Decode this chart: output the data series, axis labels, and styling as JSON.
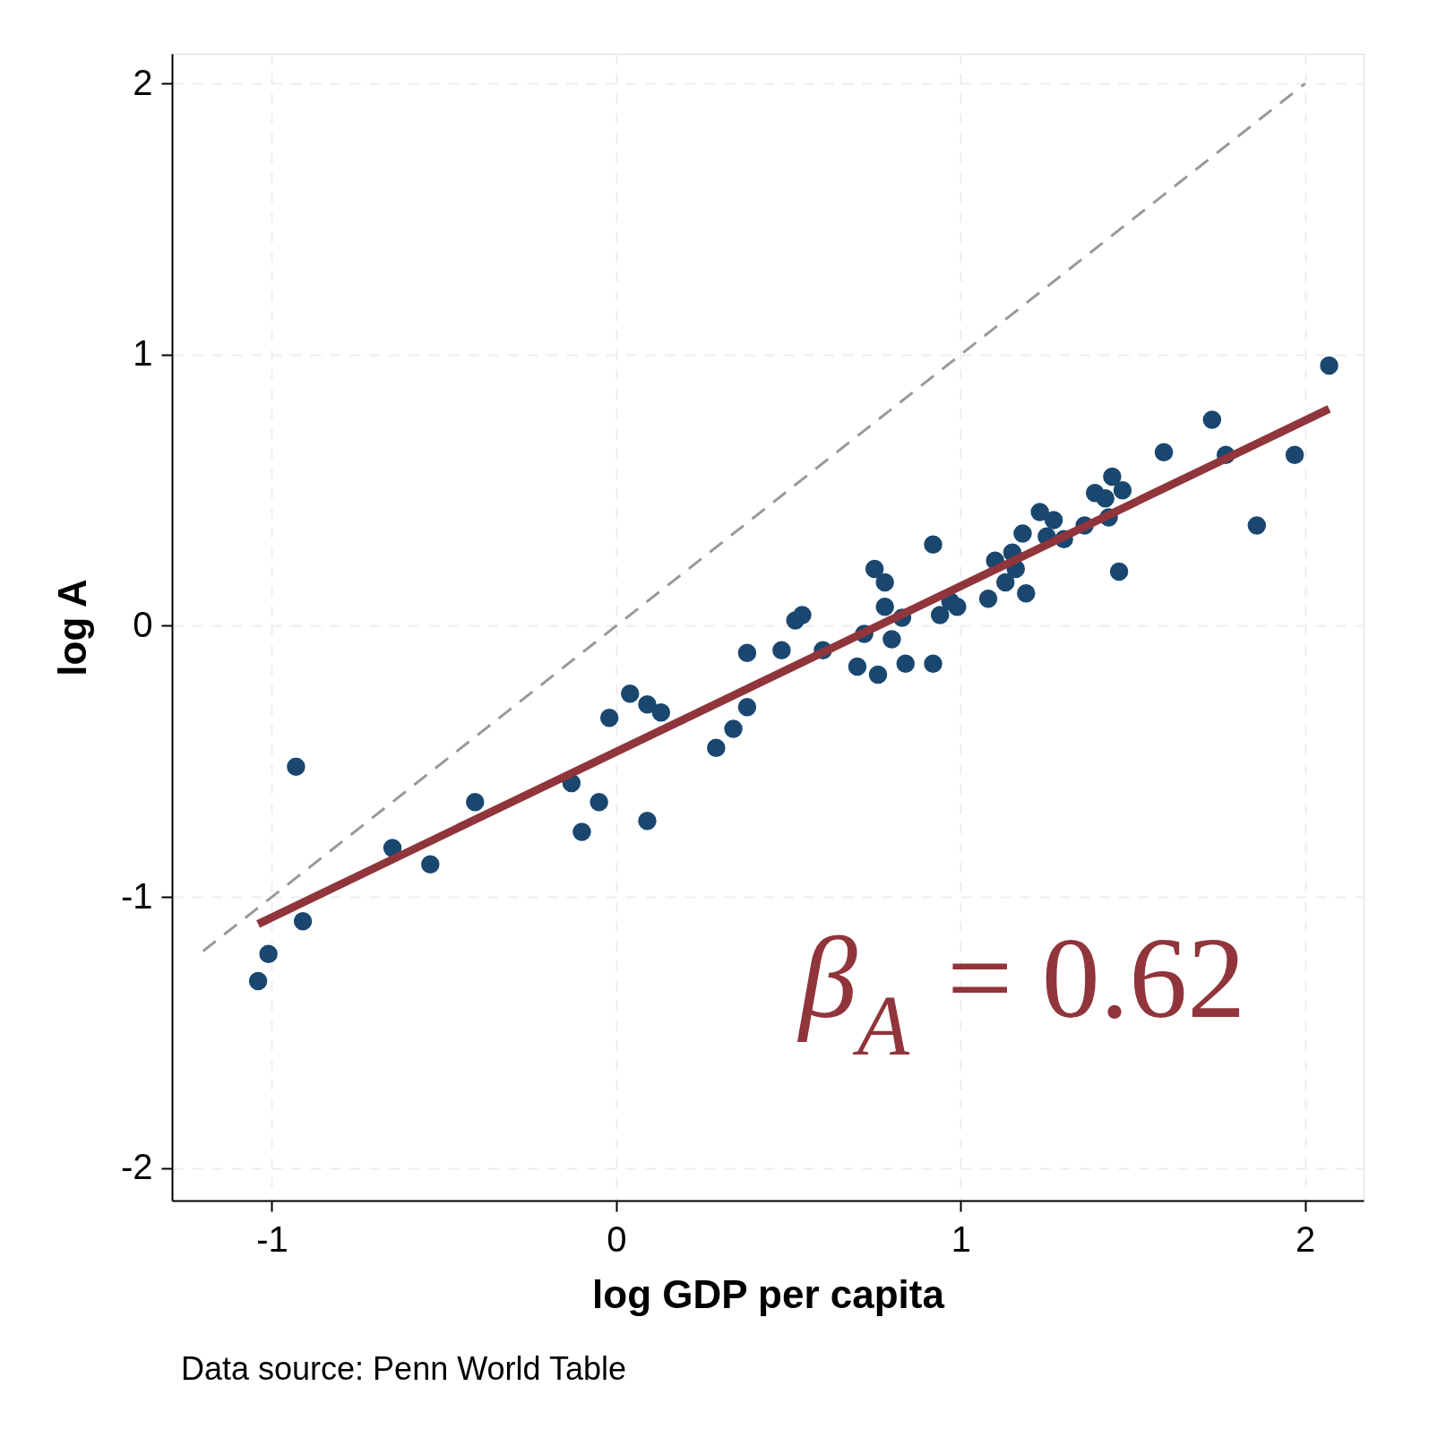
{
  "chart_data": {
    "type": "scatter",
    "xlabel": "log GDP per capita",
    "ylabel": "log A",
    "xlim": [
      -1.29,
      2.17
    ],
    "ylim": [
      -2.12,
      2.11
    ],
    "xticks": [
      -1,
      0,
      1,
      2
    ],
    "yticks": [
      -2,
      -1,
      0,
      1,
      2
    ],
    "grid": true,
    "marker": "circle",
    "series": [
      {
        "color": "#1a476f",
        "x": [
          -1.04,
          -1.01,
          -0.91,
          -0.93,
          -0.65,
          -0.54,
          -0.41,
          -0.13,
          -0.1,
          -0.05,
          -0.02,
          0.04,
          0.09,
          0.13,
          0.09,
          0.29,
          0.34,
          0.38,
          0.38,
          0.48,
          0.52,
          0.54,
          0.6,
          0.7,
          0.72,
          0.76,
          0.75,
          0.78,
          0.78,
          0.8,
          0.83,
          0.84,
          0.92,
          0.92,
          0.94,
          0.97,
          0.99,
          1.08,
          1.1,
          1.13,
          1.15,
          1.16,
          1.18,
          1.19,
          1.23,
          1.25,
          1.27,
          1.3,
          1.36,
          1.39,
          1.42,
          1.43,
          1.44,
          1.47,
          1.46,
          1.59,
          1.73,
          1.77,
          1.86,
          1.97,
          2.07
        ],
        "values": [
          -1.31,
          -1.21,
          -1.09,
          -0.52,
          -0.82,
          -0.88,
          -0.65,
          -0.58,
          -0.76,
          -0.65,
          -0.34,
          -0.25,
          -0.29,
          -0.32,
          -0.72,
          -0.45,
          -0.38,
          -0.3,
          -0.1,
          -0.09,
          0.02,
          0.04,
          -0.09,
          -0.15,
          -0.03,
          -0.18,
          0.21,
          0.16,
          0.07,
          -0.05,
          0.03,
          -0.14,
          -0.14,
          0.3,
          0.04,
          0.09,
          0.07,
          0.1,
          0.24,
          0.16,
          0.27,
          0.21,
          0.34,
          0.12,
          0.42,
          0.33,
          0.39,
          0.32,
          0.37,
          0.49,
          0.47,
          0.4,
          0.55,
          0.5,
          0.2,
          0.64,
          0.76,
          0.63,
          0.37,
          0.63,
          0.96
        ]
      },
      {
        "type": "line",
        "color": "#90353b",
        "x": [
          -1.04,
          2.07
        ],
        "values": [
          -1.1,
          0.8
        ],
        "line_style": "solid",
        "marker": "none"
      },
      {
        "type": "line",
        "color": "#999999",
        "x": [
          -1.2,
          2.0
        ],
        "values": [
          -1.2,
          2.0
        ],
        "line_style": "dashed",
        "marker": "none"
      }
    ],
    "annotations": [
      "β$_{A}$ = 0.62",
      "Data source: Penn World Table"
    ]
  }
}
